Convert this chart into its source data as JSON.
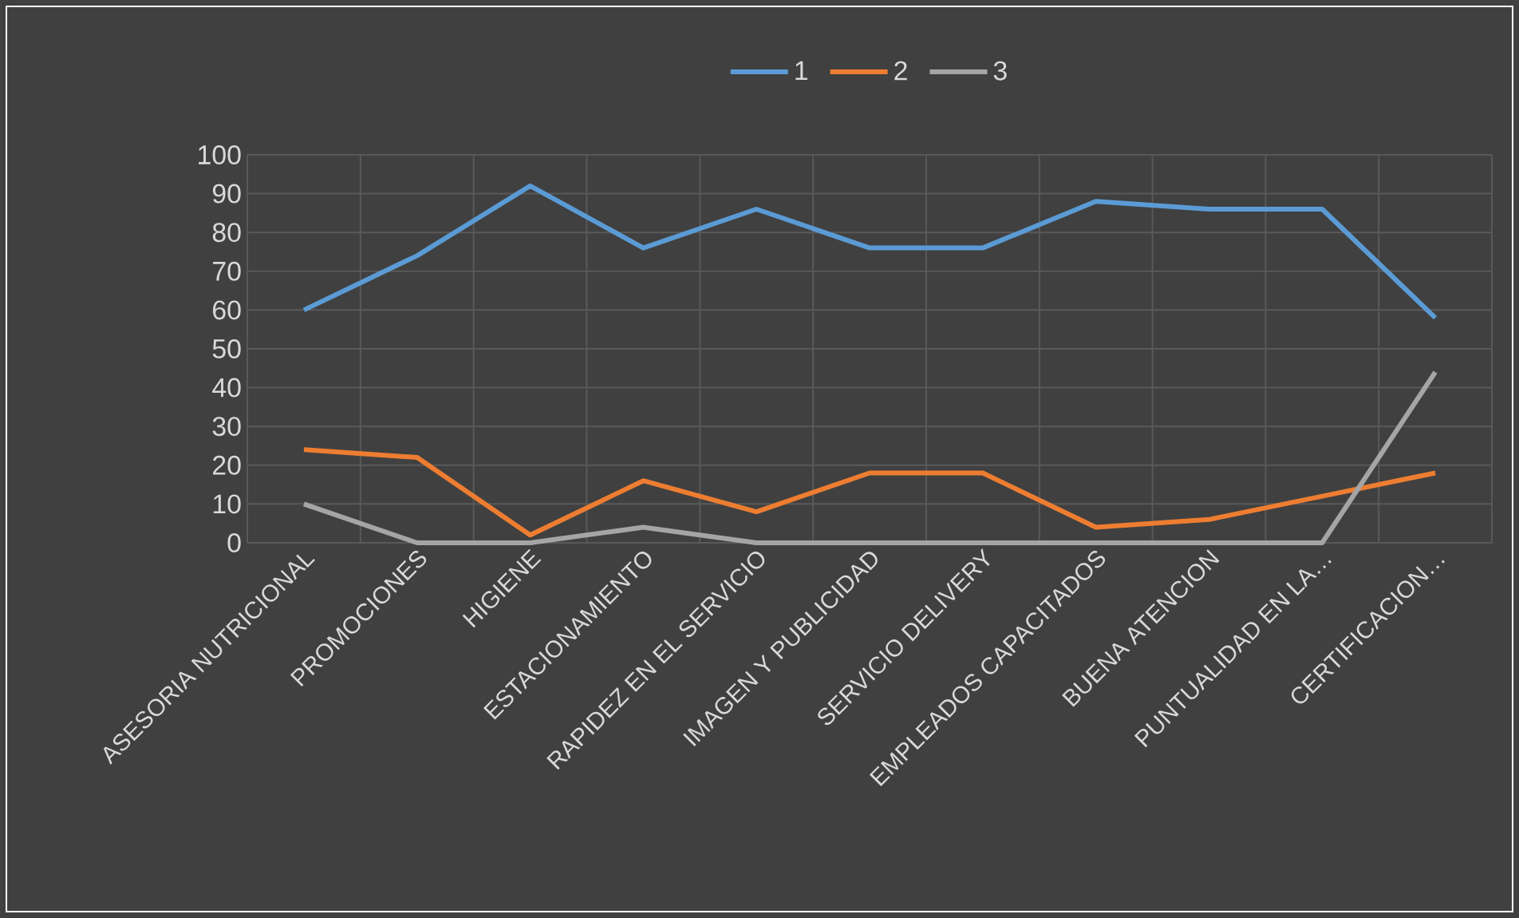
{
  "chart_data": {
    "type": "line",
    "categories": [
      "ASESORIA NUTRICIONAL",
      "PROMOCIONES",
      "HIGIENE",
      "ESTACIONAMIENTO",
      "RAPIDEZ EN EL SERVICIO",
      "IMAGEN Y PUBLICIDAD",
      "SERVICIO DELIVERY",
      "EMPLEADOS CAPACITADOS",
      "BUENA ATENCION",
      "PUNTUALIDAD EN LA…",
      "CERTIFICACION…"
    ],
    "series": [
      {
        "name": "1",
        "color": "#5b9bd5",
        "values": [
          60,
          74,
          92,
          76,
          86,
          76,
          76,
          88,
          86,
          86,
          58
        ]
      },
      {
        "name": "2",
        "color": "#ed7d31",
        "values": [
          24,
          22,
          2,
          16,
          8,
          18,
          18,
          4,
          6,
          12,
          18
        ]
      },
      {
        "name": "3",
        "color": "#a5a5a5",
        "values": [
          10,
          0,
          0,
          4,
          0,
          0,
          0,
          0,
          0,
          0,
          44
        ]
      }
    ],
    "ylim": [
      0,
      100
    ],
    "yticks": [
      0,
      10,
      20,
      30,
      40,
      50,
      60,
      70,
      80,
      90,
      100
    ],
    "grid": true,
    "legend": "top",
    "marker": "none",
    "line_style": "solid"
  }
}
